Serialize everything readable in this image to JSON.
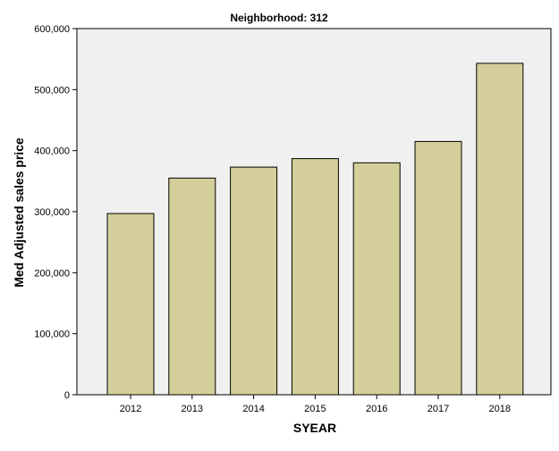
{
  "chart_data": {
    "type": "bar",
    "title": "Neighborhood: 312",
    "xlabel": "SYEAR",
    "ylabel": "Med Adjusted sales price",
    "categories": [
      "2012",
      "2013",
      "2014",
      "2015",
      "2016",
      "2017",
      "2018"
    ],
    "values": [
      297000,
      355000,
      373000,
      387000,
      380000,
      415000,
      543000
    ],
    "ylim": [
      0,
      600000
    ],
    "yticks": [
      0,
      100000,
      200000,
      300000,
      400000,
      500000,
      600000
    ],
    "ytick_labels": [
      "0",
      "100,000",
      "200,000",
      "300,000",
      "400,000",
      "500,000",
      "600,000"
    ],
    "grid": false,
    "colors": {
      "bar_fill": "#d4cf9a",
      "bar_stroke": "#000000",
      "plot_background": "#f0f0f0",
      "axis": "#000000"
    }
  }
}
